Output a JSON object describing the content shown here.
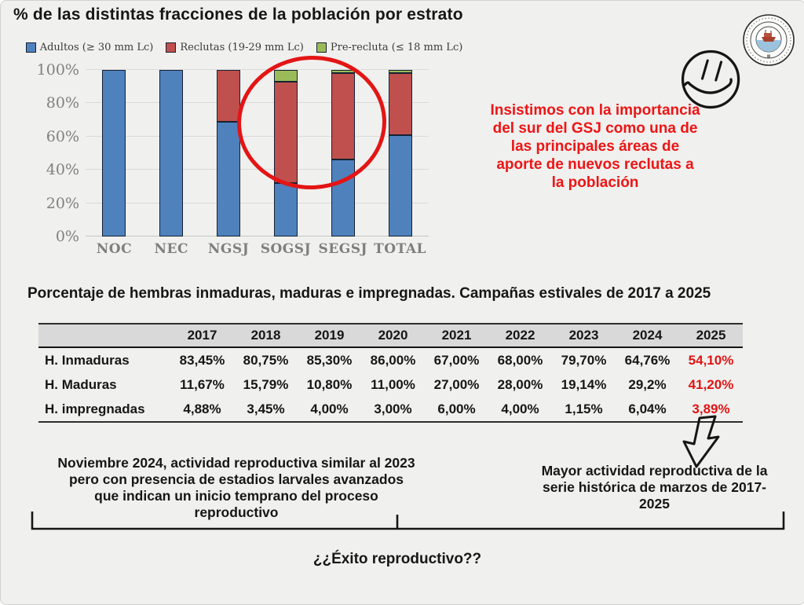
{
  "slide": {
    "title": "% de las distintas fracciones de la población por estrato",
    "red_note": "Insistimos con la importancia\ndel sur del GSJ como una de\nlas  principales áreas de\naporte de nuevos reclutas a\nla población",
    "table_title": "Porcentaje de hembras inmaduras, maduras e impregnadas. Campañas estivales de 2017 a 2025",
    "note_left": "Noviembre 2024, actividad reproductiva similar al 2023\npero con presencia de estadios larvales avanzados\nque indican un inicio temprano del proceso\nreproductivo",
    "note_right": "Mayor actividad reproductiva de la\nserie histórica de marzos de 2017-\n2025",
    "question": "¿¿Éxito reproductivo??",
    "icons": {
      "smiley": "hand-drawn-smiley-face",
      "logo": "circular-institution-seal-with-ship",
      "arrow": "hand-drawn-hollow-down-arrow",
      "ellipse": "red-hand-drawn-circle-annotation"
    }
  },
  "chart_data": {
    "type": "bar",
    "stacked": true,
    "title": "",
    "categories": [
      "NOC",
      "NEC",
      "NGSJ",
      "SOGSJ",
      "SEGSJ",
      "TOTAL"
    ],
    "series": [
      {
        "name": "Adultos (≥ 30 mm Lc)",
        "color": "#4f81bd",
        "values": [
          100,
          100,
          69,
          32,
          46,
          61
        ]
      },
      {
        "name": "Reclutas (19-29 mm Lc)",
        "color": "#c0504d",
        "values": [
          0,
          0,
          31,
          61,
          52,
          37
        ]
      },
      {
        "name": "Pre-recluta (≤ 18 mm Lc)",
        "color": "#9bbb59",
        "values": [
          0,
          0,
          0,
          7,
          2,
          2
        ]
      }
    ],
    "xlabel": "",
    "ylabel": "",
    "ylim": [
      0,
      100
    ],
    "ytick_step": 20,
    "ytick_suffix": "%",
    "grid": true,
    "legend_position": "top",
    "bar_border_color": "#152233"
  },
  "table": {
    "year_columns": [
      "2017",
      "2018",
      "2019",
      "2020",
      "2021",
      "2022",
      "2023",
      "2024",
      "2025"
    ],
    "rows": [
      {
        "label": "H. Inmaduras",
        "values": [
          "83,45%",
          "80,75%",
          "85,30%",
          "86,00%",
          "67,00%",
          "68,00%",
          "79,70%",
          "64,76%",
          "54,10%"
        ]
      },
      {
        "label": "H. Maduras",
        "values": [
          "11,67%",
          "15,79%",
          "10,80%",
          "11,00%",
          "27,00%",
          "28,00%",
          "19,14%",
          "29,2%",
          "41,20%"
        ]
      },
      {
        "label": "H. impregnadas",
        "values": [
          "4,88%",
          "3,45%",
          "4,00%",
          "3,00%",
          "6,00%",
          "4,00%",
          "1,15%",
          "6,04%",
          "3,89%"
        ]
      }
    ],
    "highlight_column": "2025",
    "highlight_color": "#e11414"
  },
  "colors": {
    "background": "#f0f0ee",
    "red_accent": "#ed1515",
    "axis_text": "#7f7f7f",
    "grid_line": "#dadada",
    "table_header_fill": "#d9d9d9",
    "ink": "#161616"
  }
}
